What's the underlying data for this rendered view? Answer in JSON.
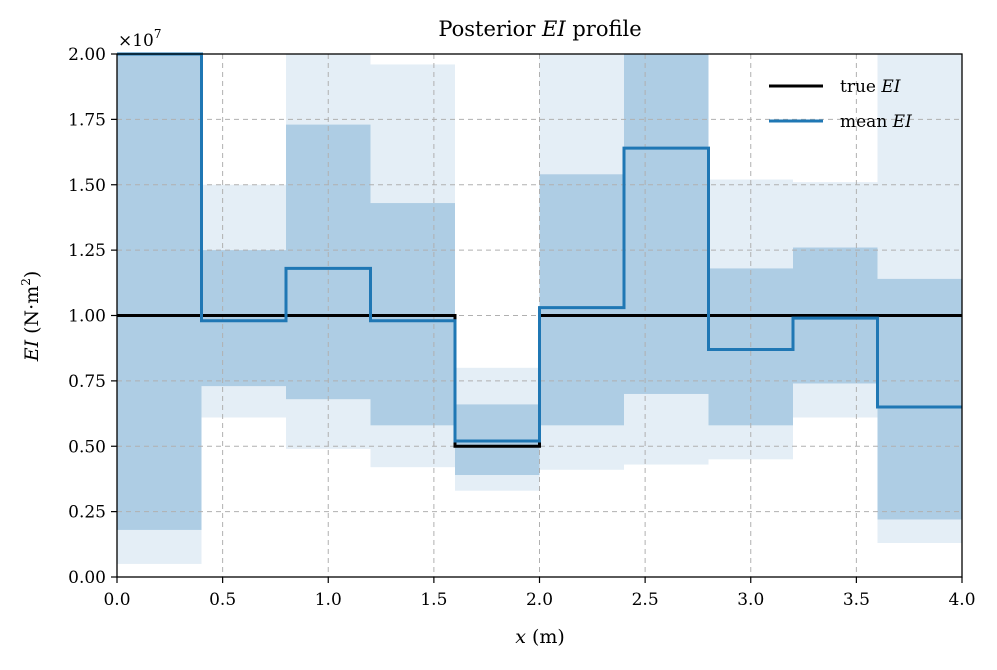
{
  "chart_data": {
    "type": "line",
    "title": "Posterior EI profile",
    "xlabel": "x (m)",
    "ylabel": "EI (N·m²)",
    "y_multiplier_label": "×10⁷",
    "xlim": [
      0.0,
      4.0
    ],
    "ylim": [
      0.0,
      2.0
    ],
    "xticks": [
      "0.0",
      "0.5",
      "1.0",
      "1.5",
      "2.0",
      "2.5",
      "3.0",
      "3.5",
      "4.0"
    ],
    "yticks": [
      "0.00",
      "0.25",
      "0.50",
      "0.75",
      "1.00",
      "1.25",
      "1.50",
      "1.75",
      "2.00"
    ],
    "grid": true,
    "legend_position": "top-right",
    "segment_edges": [
      0.0,
      0.4,
      0.8,
      1.2,
      1.6,
      2.0,
      2.4,
      2.8,
      3.2,
      3.6,
      4.0
    ],
    "series": [
      {
        "name": "true EI",
        "color": "#000000",
        "values": [
          1.0,
          1.0,
          1.0,
          1.0,
          0.5,
          1.0,
          1.0,
          1.0,
          1.0,
          1.0
        ]
      },
      {
        "name": "mean EI",
        "color": "#1f77b4",
        "values": [
          2.0,
          0.98,
          1.18,
          0.98,
          0.52,
          1.03,
          1.64,
          0.87,
          0.99,
          0.65
        ]
      }
    ],
    "bands": {
      "color": "#1f77b4",
      "inner_lower": [
        0.18,
        0.73,
        0.68,
        0.58,
        0.39,
        0.58,
        0.7,
        0.58,
        0.74,
        0.22
      ],
      "inner_upper": [
        2.0,
        1.25,
        1.73,
        1.43,
        0.66,
        1.54,
        2.0,
        1.18,
        1.26,
        1.14
      ],
      "outer_lower": [
        0.05,
        0.61,
        0.49,
        0.42,
        0.33,
        0.41,
        0.43,
        0.45,
        0.61,
        0.13
      ],
      "outer_upper": [
        2.0,
        1.5,
        2.0,
        1.96,
        0.8,
        2.0,
        2.0,
        1.52,
        1.51,
        2.0
      ]
    }
  }
}
